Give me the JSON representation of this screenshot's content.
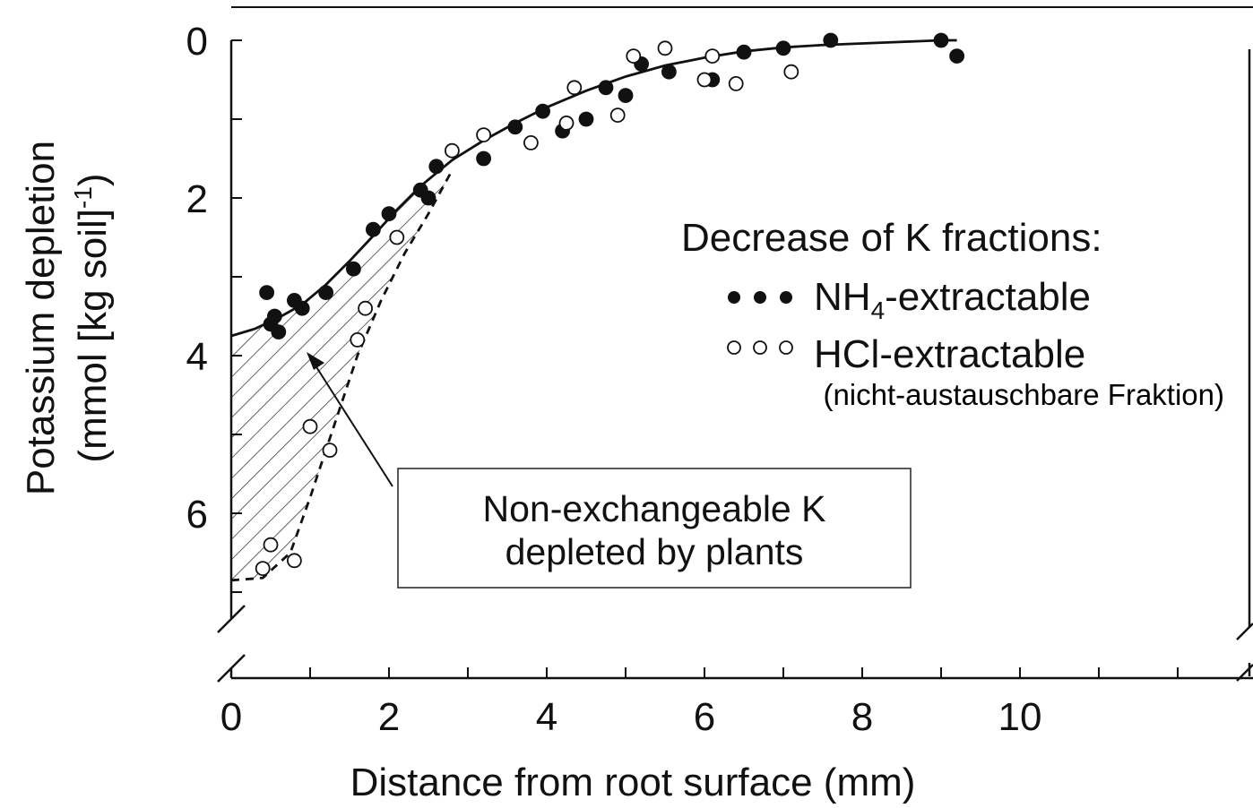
{
  "chart_data": {
    "type": "scatter",
    "xlabel": "Distance from root surface (mm)",
    "ylabel_line1": "Potassium depletion",
    "ylabel_line2": "(mmol [kg soil]",
    "ylabel_sup": "-1",
    "ylabel_close": ")",
    "xlim": [
      0,
      13
    ],
    "ylim": [
      0,
      7.4
    ],
    "y_inverted": true,
    "x_ticks": [
      0,
      2,
      4,
      6,
      8,
      10
    ],
    "y_ticks": [
      0,
      2,
      4,
      6
    ],
    "legend": {
      "title": "Decrease of K fractions:",
      "nh4_main": "NH",
      "nh4_sub": "4",
      "nh4_rest": "-extractable",
      "hcl_label": "HCl-extractable",
      "hcl_note": "(nicht-austauschbare Fraktion)"
    },
    "annotation": {
      "line1": "Non-exchangeable K",
      "line2": "depleted by plants"
    },
    "series": [
      {
        "name": "NH4-extractable",
        "marker": "filled",
        "points": [
          [
            0.45,
            3.2
          ],
          [
            0.5,
            3.6
          ],
          [
            0.55,
            3.5
          ],
          [
            0.6,
            3.7
          ],
          [
            0.8,
            3.3
          ],
          [
            0.9,
            3.4
          ],
          [
            1.2,
            3.2
          ],
          [
            1.55,
            2.9
          ],
          [
            1.8,
            2.4
          ],
          [
            2.0,
            2.2
          ],
          [
            2.4,
            1.9
          ],
          [
            2.5,
            2.0
          ],
          [
            2.6,
            1.6
          ],
          [
            3.2,
            1.5
          ],
          [
            3.6,
            1.1
          ],
          [
            3.95,
            0.9
          ],
          [
            4.2,
            1.15
          ],
          [
            4.5,
            1.0
          ],
          [
            4.75,
            0.6
          ],
          [
            5.0,
            0.7
          ],
          [
            5.2,
            0.3
          ],
          [
            5.55,
            0.4
          ],
          [
            6.1,
            0.5
          ],
          [
            6.5,
            0.15
          ],
          [
            7.0,
            0.1
          ],
          [
            7.6,
            0.0
          ],
          [
            9.0,
            0.0
          ],
          [
            9.2,
            0.2
          ]
        ]
      },
      {
        "name": "HCl-extractable",
        "marker": "open",
        "points": [
          [
            0.4,
            6.7
          ],
          [
            0.5,
            6.4
          ],
          [
            0.8,
            6.6
          ],
          [
            1.0,
            4.9
          ],
          [
            1.25,
            5.2
          ],
          [
            1.6,
            3.8
          ],
          [
            1.7,
            3.4
          ],
          [
            2.1,
            2.5
          ],
          [
            2.8,
            1.4
          ],
          [
            3.2,
            1.2
          ],
          [
            3.8,
            1.3
          ],
          [
            4.25,
            1.05
          ],
          [
            4.35,
            0.6
          ],
          [
            4.9,
            0.95
          ],
          [
            5.1,
            0.2
          ],
          [
            5.5,
            0.1
          ],
          [
            6.0,
            0.5
          ],
          [
            6.1,
            0.2
          ],
          [
            6.4,
            0.55
          ],
          [
            7.1,
            0.4
          ]
        ]
      }
    ],
    "fit_curve": [
      [
        0.0,
        3.75
      ],
      [
        0.3,
        3.66
      ],
      [
        0.6,
        3.52
      ],
      [
        0.9,
        3.35
      ],
      [
        1.2,
        3.1
      ],
      [
        1.5,
        2.8
      ],
      [
        1.8,
        2.48
      ],
      [
        2.1,
        2.15
      ],
      [
        2.4,
        1.85
      ],
      [
        2.8,
        1.52
      ],
      [
        3.2,
        1.27
      ],
      [
        3.6,
        1.05
      ],
      [
        4.0,
        0.85
      ],
      [
        4.5,
        0.64
      ],
      [
        5.0,
        0.46
      ],
      [
        5.5,
        0.32
      ],
      [
        6.0,
        0.22
      ],
      [
        6.5,
        0.14
      ],
      [
        7.0,
        0.09
      ],
      [
        7.5,
        0.06
      ],
      [
        8.0,
        0.04
      ],
      [
        8.5,
        0.02
      ],
      [
        9.0,
        0.0
      ],
      [
        9.2,
        0.0
      ]
    ],
    "dashed_curve": [
      [
        0.0,
        6.85
      ],
      [
        0.4,
        6.82
      ],
      [
        0.75,
        6.5
      ],
      [
        1.0,
        5.8
      ],
      [
        1.3,
        4.9
      ],
      [
        1.6,
        4.0
      ],
      [
        1.9,
        3.3
      ],
      [
        2.2,
        2.7
      ],
      [
        2.5,
        2.2
      ],
      [
        2.8,
        1.65
      ]
    ]
  }
}
